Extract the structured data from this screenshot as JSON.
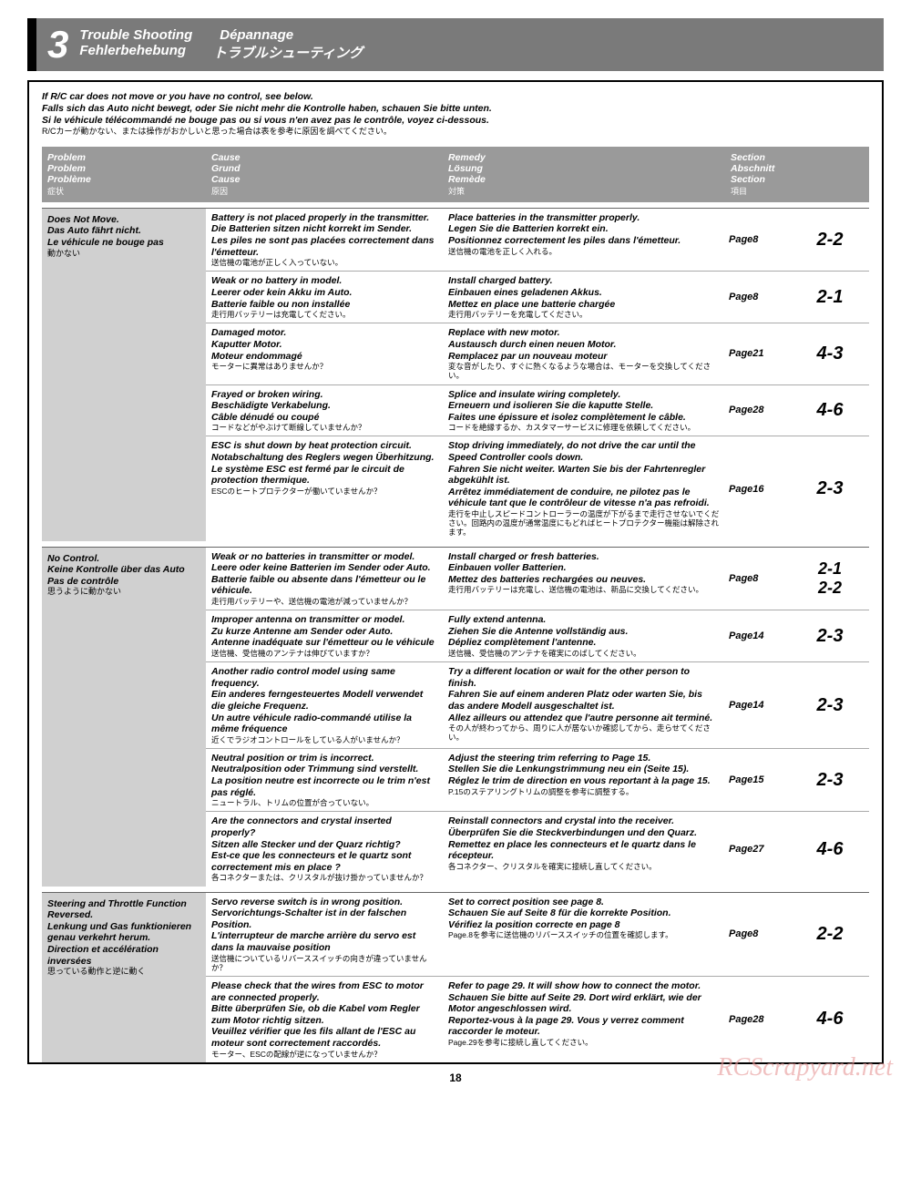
{
  "section": {
    "number": "3",
    "titles_row1": [
      "Trouble Shooting",
      "Dépannage"
    ],
    "titles_row2": [
      "Fehlerbehebung",
      "トラブルシューティング"
    ]
  },
  "intro": {
    "en": "If R/C car does not move or you have no control, see below.",
    "de": "Falls sich das Auto nicht bewegt, oder Sie nicht mehr die Kontrolle haben, schauen Sie bitte unten.",
    "fr": "Si le véhicule télécommandé ne bouge pas ou si vous n'en avez pas le contrôle, voyez ci-dessous.",
    "jp": "R/Cカーが動かない、または操作がおかしいと思った場合は表を参考に原因を調べてください。"
  },
  "headers": {
    "problem": [
      "Problem",
      "Problem",
      "Problème",
      "症状"
    ],
    "cause": [
      "Cause",
      "Grund",
      "Cause",
      "原因"
    ],
    "remedy": [
      "Remedy",
      "Lösung",
      "Remède",
      "対策"
    ],
    "section": [
      "Section",
      "Abschnitt",
      "Section",
      "項目"
    ]
  },
  "groups": [
    {
      "problem": {
        "en": "Does Not Move.",
        "de": "Das Auto fährt nicht.",
        "fr": "Le véhicule ne bouge pas",
        "jp": "動かない"
      },
      "rows": [
        {
          "cause": {
            "en": "Battery is not placed properly in the transmitter.",
            "de": "Die Batterien sitzen nicht korrekt im Sender.",
            "fr": "Les piles ne sont pas placées correctement dans l'émetteur.",
            "jp": "送信機の電池が正しく入っていない。"
          },
          "remedy": {
            "en": "Place batteries in the transmitter properly.",
            "de": "Legen Sie die Batterien korrekt ein.",
            "fr": "Positionnez correctement les piles dans l'émetteur.",
            "jp": "送信機の電池を正しく入れる。"
          },
          "page": "Page8",
          "ref": "2-2"
        },
        {
          "cause": {
            "en": "Weak or no battery in model.",
            "de": "Leerer oder kein Akku im Auto.",
            "fr": "Batterie faible ou non installée",
            "jp": "走行用バッテリーは充電してください。"
          },
          "remedy": {
            "en": "Install charged battery.",
            "de": "Einbauen eines geladenen Akkus.",
            "fr": "Mettez en place une batterie chargée",
            "jp": "走行用バッテリーを充電してください。"
          },
          "page": "Page8",
          "ref": "2-1"
        },
        {
          "cause": {
            "en": "Damaged motor.",
            "de": "Kaputter Motor.",
            "fr": "Moteur endommagé",
            "jp": "モーターに異常はありませんか？"
          },
          "remedy": {
            "en": "Replace with new motor.",
            "de": "Austausch durch einen neuen Motor.",
            "fr": "Remplacez par un nouveau moteur",
            "jp": "変な音がしたり、すぐに熱くなるような場合は、モーターを交換してください。"
          },
          "page": "Page21",
          "ref": "4-3"
        },
        {
          "cause": {
            "en": "Frayed or broken wiring.",
            "de": "Beschädigte Verkabelung.",
            "fr": "Câble dénudé ou coupé",
            "jp": "コードなどがやぶけて断線していませんか？"
          },
          "remedy": {
            "en": "Splice and insulate wiring completely.",
            "de": "Erneuern und isolieren Sie die kaputte Stelle.",
            "fr": "Faites une épissure et isolez complètement le câble.",
            "jp": "コードを絶縁するか、カスタマーサービスに修理を依頼してください。"
          },
          "page": "Page28",
          "ref": "4-6"
        },
        {
          "cause": {
            "en": "ESC is shut down by heat protection circuit.",
            "de": "Notabschaltung des Reglers wegen Überhitzung.",
            "fr": "Le système ESC est fermé par le circuit de protection thermique.",
            "jp": "ESCのヒートプロテクターが働いていませんか？"
          },
          "remedy": {
            "en": "Stop driving immediately, do not drive the car until the Speed Controller cools down.",
            "de": "Fahren Sie nicht weiter. Warten Sie bis der Fahrtenregler abgekühlt ist.",
            "fr": "Arrêtez immédiatement de conduire, ne pilotez pas le véhicule tant que le contrôleur de vitesse n'a pas refroidi.",
            "jp": "走行を中止しスピードコントローラーの温度が下がるまで走行させないでください。回路内の温度が通常温度にもどればヒートプロテクター機能は解除されます。"
          },
          "page": "Page16",
          "ref": "2-3"
        }
      ]
    },
    {
      "problem": {
        "en": "No Control.",
        "de": "Keine Kontrolle über das Auto",
        "fr": "Pas de contrôle",
        "jp": "思うように動かない"
      },
      "rows": [
        {
          "cause": {
            "en": "Weak or no batteries in transmitter or model.",
            "de": "Leere oder keine Batterien im Sender oder Auto.",
            "fr": "Batterie faible ou absente dans l'émetteur ou le véhicule.",
            "jp": "走行用バッテリーや、送信機の電池が減っていませんか？"
          },
          "remedy": {
            "en": "Install charged or fresh batteries.",
            "de": "Einbauen voller Batterien.",
            "fr": "Mettez des batteries rechargées ou neuves.",
            "jp": "走行用バッテリーは充電し、送信機の電池は、新品に交換してください。"
          },
          "page": "Page8",
          "ref": "2-1\n2-2",
          "multi_ref": [
            "2-1",
            "2-2"
          ]
        },
        {
          "cause": {
            "en": "Improper antenna on transmitter or model.",
            "de": "Zu kurze Antenne am Sender oder Auto.",
            "fr": "Antenne inadéquate sur l'émetteur ou le véhicule",
            "jp": "送信機、受信機のアンテナは伸びていますか？"
          },
          "remedy": {
            "en": "Fully extend antenna.",
            "de": "Ziehen Sie die Antenne vollständig aus.",
            "fr": "Dépliez complètement l'antenne.",
            "jp": "送信機、受信機のアンテナを確実にのばしてください。"
          },
          "page": "Page14",
          "ref": "2-3"
        },
        {
          "cause": {
            "en": "Another radio control model using same frequency.",
            "de": "Ein anderes ferngesteuertes Modell verwendet die gleiche Frequenz.",
            "fr": "Un autre véhicule radio-commandé utilise la même fréquence",
            "jp": "近くでラジオコントロールをしている人がいませんか？"
          },
          "remedy": {
            "en": "Try a different location or wait for the other person to finish.",
            "de": "Fahren Sie auf einem anderen Platz oder warten Sie, bis das andere Modell ausgeschaltet ist.",
            "fr": "Allez ailleurs ou attendez que l'autre personne ait terminé.",
            "jp": "その人が終わってから、周りに人が居ないか確認してから、走らせてください。"
          },
          "page": "Page14",
          "ref": "2-3"
        },
        {
          "cause": {
            "en": "Neutral position or trim is incorrect.",
            "de": "Neutralposition oder Trimmung sind verstellt.",
            "fr": "La position neutre est incorrecte ou le trim n'est pas réglé.",
            "jp": "ニュートラル、トリムの位置が合っていない。"
          },
          "remedy": {
            "en": "Adjust the steering trim referring to Page 15.",
            "de": "Stellen Sie die Lenkungstrimmung neu ein (Seite 15).",
            "fr": "Réglez le trim de direction en vous reportant à la page 15.",
            "jp": "P.15のステアリングトリムの調整を参考に調整する。"
          },
          "page": "Page15",
          "ref": "2-3"
        },
        {
          "cause": {
            "en": "Are the connectors and crystal inserted properly?",
            "de": "Sitzen alle Stecker und der Quarz richtig?",
            "fr": "Est-ce que les connecteurs et le quartz sont correctement mis en place ?",
            "jp": "各コネクターまたは、クリスタルが抜け掛かっていませんか？"
          },
          "remedy": {
            "en": "Reinstall connectors and crystal into the receiver.",
            "de": "Überprüfen Sie die Steckverbindungen und den Quarz.",
            "fr": "Remettez en place les connecteurs et le quartz dans le récepteur.",
            "jp": "各コネクター、クリスタルを確実に接続し直してください。"
          },
          "page": "Page27",
          "ref": "4-6"
        }
      ]
    },
    {
      "problem": {
        "en": "Steering and Throttle Function Reversed.",
        "de": "Lenkung und Gas funktionieren genau verkehrt herum.",
        "fr": "Direction et accélération inversées",
        "jp": "思っている動作と逆に動く"
      },
      "rows": [
        {
          "cause": {
            "en": "Servo reverse switch is in wrong position.",
            "de": "Servorichtungs-Schalter ist in der falschen Position.",
            "fr": "L'interrupteur de marche arrière du servo est dans la mauvaise position",
            "jp": "送信機についているリバーススイッチの向きが違っていませんか？"
          },
          "remedy": {
            "en": "Set to correct position see page 8.",
            "de": "Schauen Sie auf Seite 8 für die korrekte Position.",
            "fr": "Vérifiez la position correcte en page 8",
            "jp": "Page.8を参考に送信機のリバーススイッチの位置を確認します。"
          },
          "page": "Page8",
          "ref": "2-2"
        },
        {
          "cause": {
            "en": "Please check that the wires from ESC to motor are connected properly.",
            "de": "Bitte überprüfen Sie, ob die Kabel vom Regler zum Motor richtig sitzen.",
            "fr": "Veuillez vérifier que les fils allant de l'ESC au moteur sont correctement raccordés.",
            "jp": "モーター、ESCの配線が逆になっていませんか？"
          },
          "remedy": {
            "en": "Refer to page 29. It will show how to connect the motor.",
            "de": "Schauen Sie bitte auf Seite 29. Dort wird erklärt, wie der Motor angeschlossen wird.",
            "fr": "Reportez-vous à la page 29. Vous y verrez comment raccorder le moteur.",
            "jp": "Page.29を参考に接続し直してください。"
          },
          "page": "Page28",
          "ref": "4-6"
        }
      ]
    }
  ],
  "watermark": "RCScrapyard.net",
  "pagenum": "18"
}
